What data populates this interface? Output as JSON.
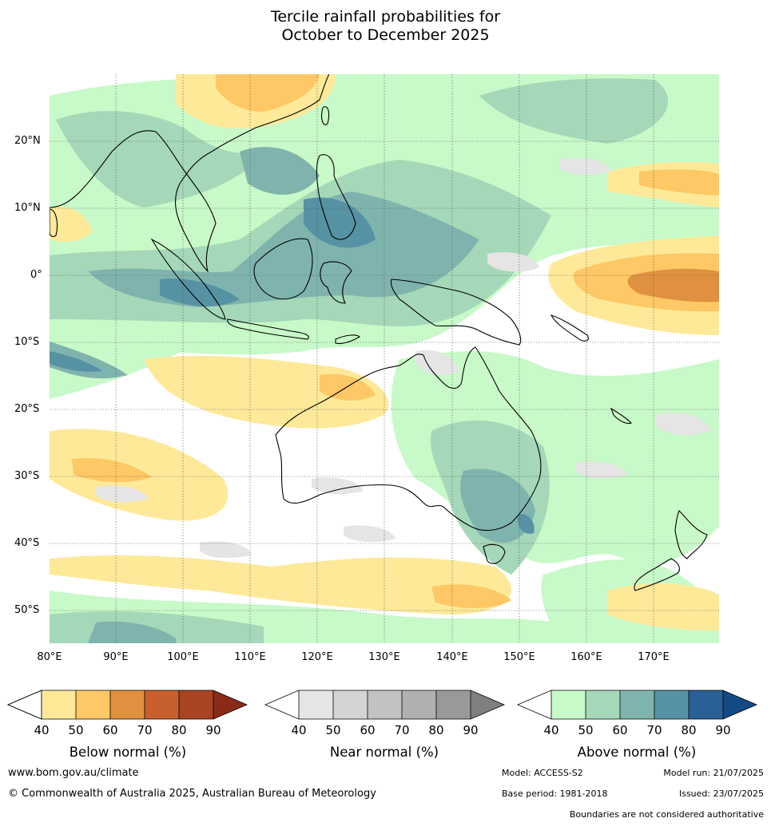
{
  "title": {
    "line1": "Tercile rainfall probabilities for",
    "line2": "October to December 2025"
  },
  "map": {
    "lon_labels": [
      "80°E",
      "90°E",
      "100°E",
      "110°E",
      "120°E",
      "130°E",
      "140°E",
      "150°E",
      "160°E",
      "170°E"
    ],
    "lat_labels": [
      "20°N",
      "10°N",
      "0°",
      "10°S",
      "20°S",
      "30°S",
      "40°S",
      "50°S"
    ],
    "colors": {
      "below": [
        "#fee999",
        "#fdc865",
        "#e0913f",
        "#c7602d",
        "#a84424",
        "#8b2a18"
      ],
      "near": [
        "#e5e5e5",
        "#d4d4d4",
        "#c2c2c2",
        "#b0b0b0",
        "#999999",
        "#7f7f7f"
      ],
      "above": [
        "#c8f9c8",
        "#a4d8b8",
        "#7fb4ae",
        "#5692a3",
        "#2b6096",
        "#134a86"
      ]
    }
  },
  "colorbars": [
    {
      "title": "Below normal (%)",
      "ticks": [
        "40",
        "50",
        "60",
        "70",
        "80",
        "90"
      ]
    },
    {
      "title": "Near normal (%)",
      "ticks": [
        "40",
        "50",
        "60",
        "70",
        "80",
        "90"
      ]
    },
    {
      "title": "Above normal (%)",
      "ticks": [
        "40",
        "50",
        "60",
        "70",
        "80",
        "90"
      ]
    }
  ],
  "footer": {
    "website": "www.bom.gov.au/climate",
    "copyright": "© Commonwealth of Australia 2025, Australian Bureau of Meteorology",
    "model": "Model: ACCESS-S2",
    "model_run": "Model run: 21/07/2025",
    "base_period": "Base period: 1981-2018",
    "issued": "Issued: 23/07/2025",
    "disclaimer": "Boundaries are not considered authoritative"
  }
}
